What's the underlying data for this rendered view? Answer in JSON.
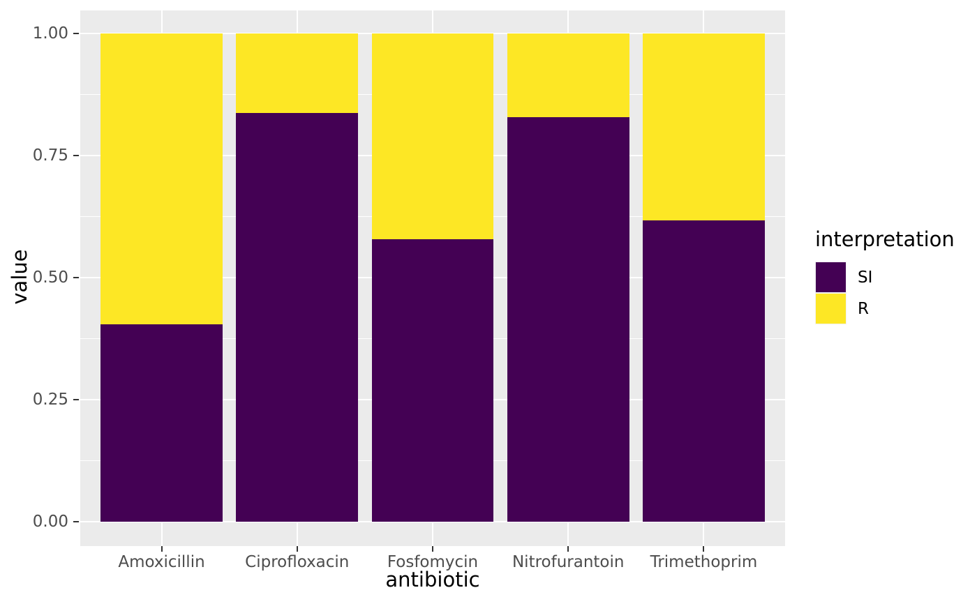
{
  "chart_data": {
    "type": "bar",
    "stacked": true,
    "title": "",
    "xlabel": "antibiotic",
    "ylabel": "value",
    "categories": [
      "Amoxicillin",
      "Ciprofloxacin",
      "Fosfomycin",
      "Nitrofurantoin",
      "Trimethoprim"
    ],
    "series": [
      {
        "name": "SI",
        "color": "#440154",
        "values": [
          0.404,
          0.837,
          0.579,
          0.829,
          0.617
        ]
      },
      {
        "name": "R",
        "color": "#FDE725",
        "values": [
          0.596,
          0.163,
          0.421,
          0.171,
          0.383
        ]
      }
    ],
    "ylim": [
      0,
      1
    ],
    "yticks": [
      0.0,
      0.25,
      0.5,
      0.75,
      1.0
    ],
    "ytick_labels": [
      "0.00",
      "0.25",
      "0.50",
      "0.75",
      "1.00"
    ],
    "y_minor_ticks": [
      0.125,
      0.375,
      0.625,
      0.875
    ],
    "bar_width_fraction": 0.9,
    "grid": true,
    "panel_background": "#EBEBEB",
    "gridline_color": "#ffffff",
    "legend": {
      "title": "interpretation",
      "position": "right",
      "entries": [
        {
          "label": "SI",
          "color": "#440154"
        },
        {
          "label": "R",
          "color": "#FDE725"
        }
      ]
    }
  }
}
